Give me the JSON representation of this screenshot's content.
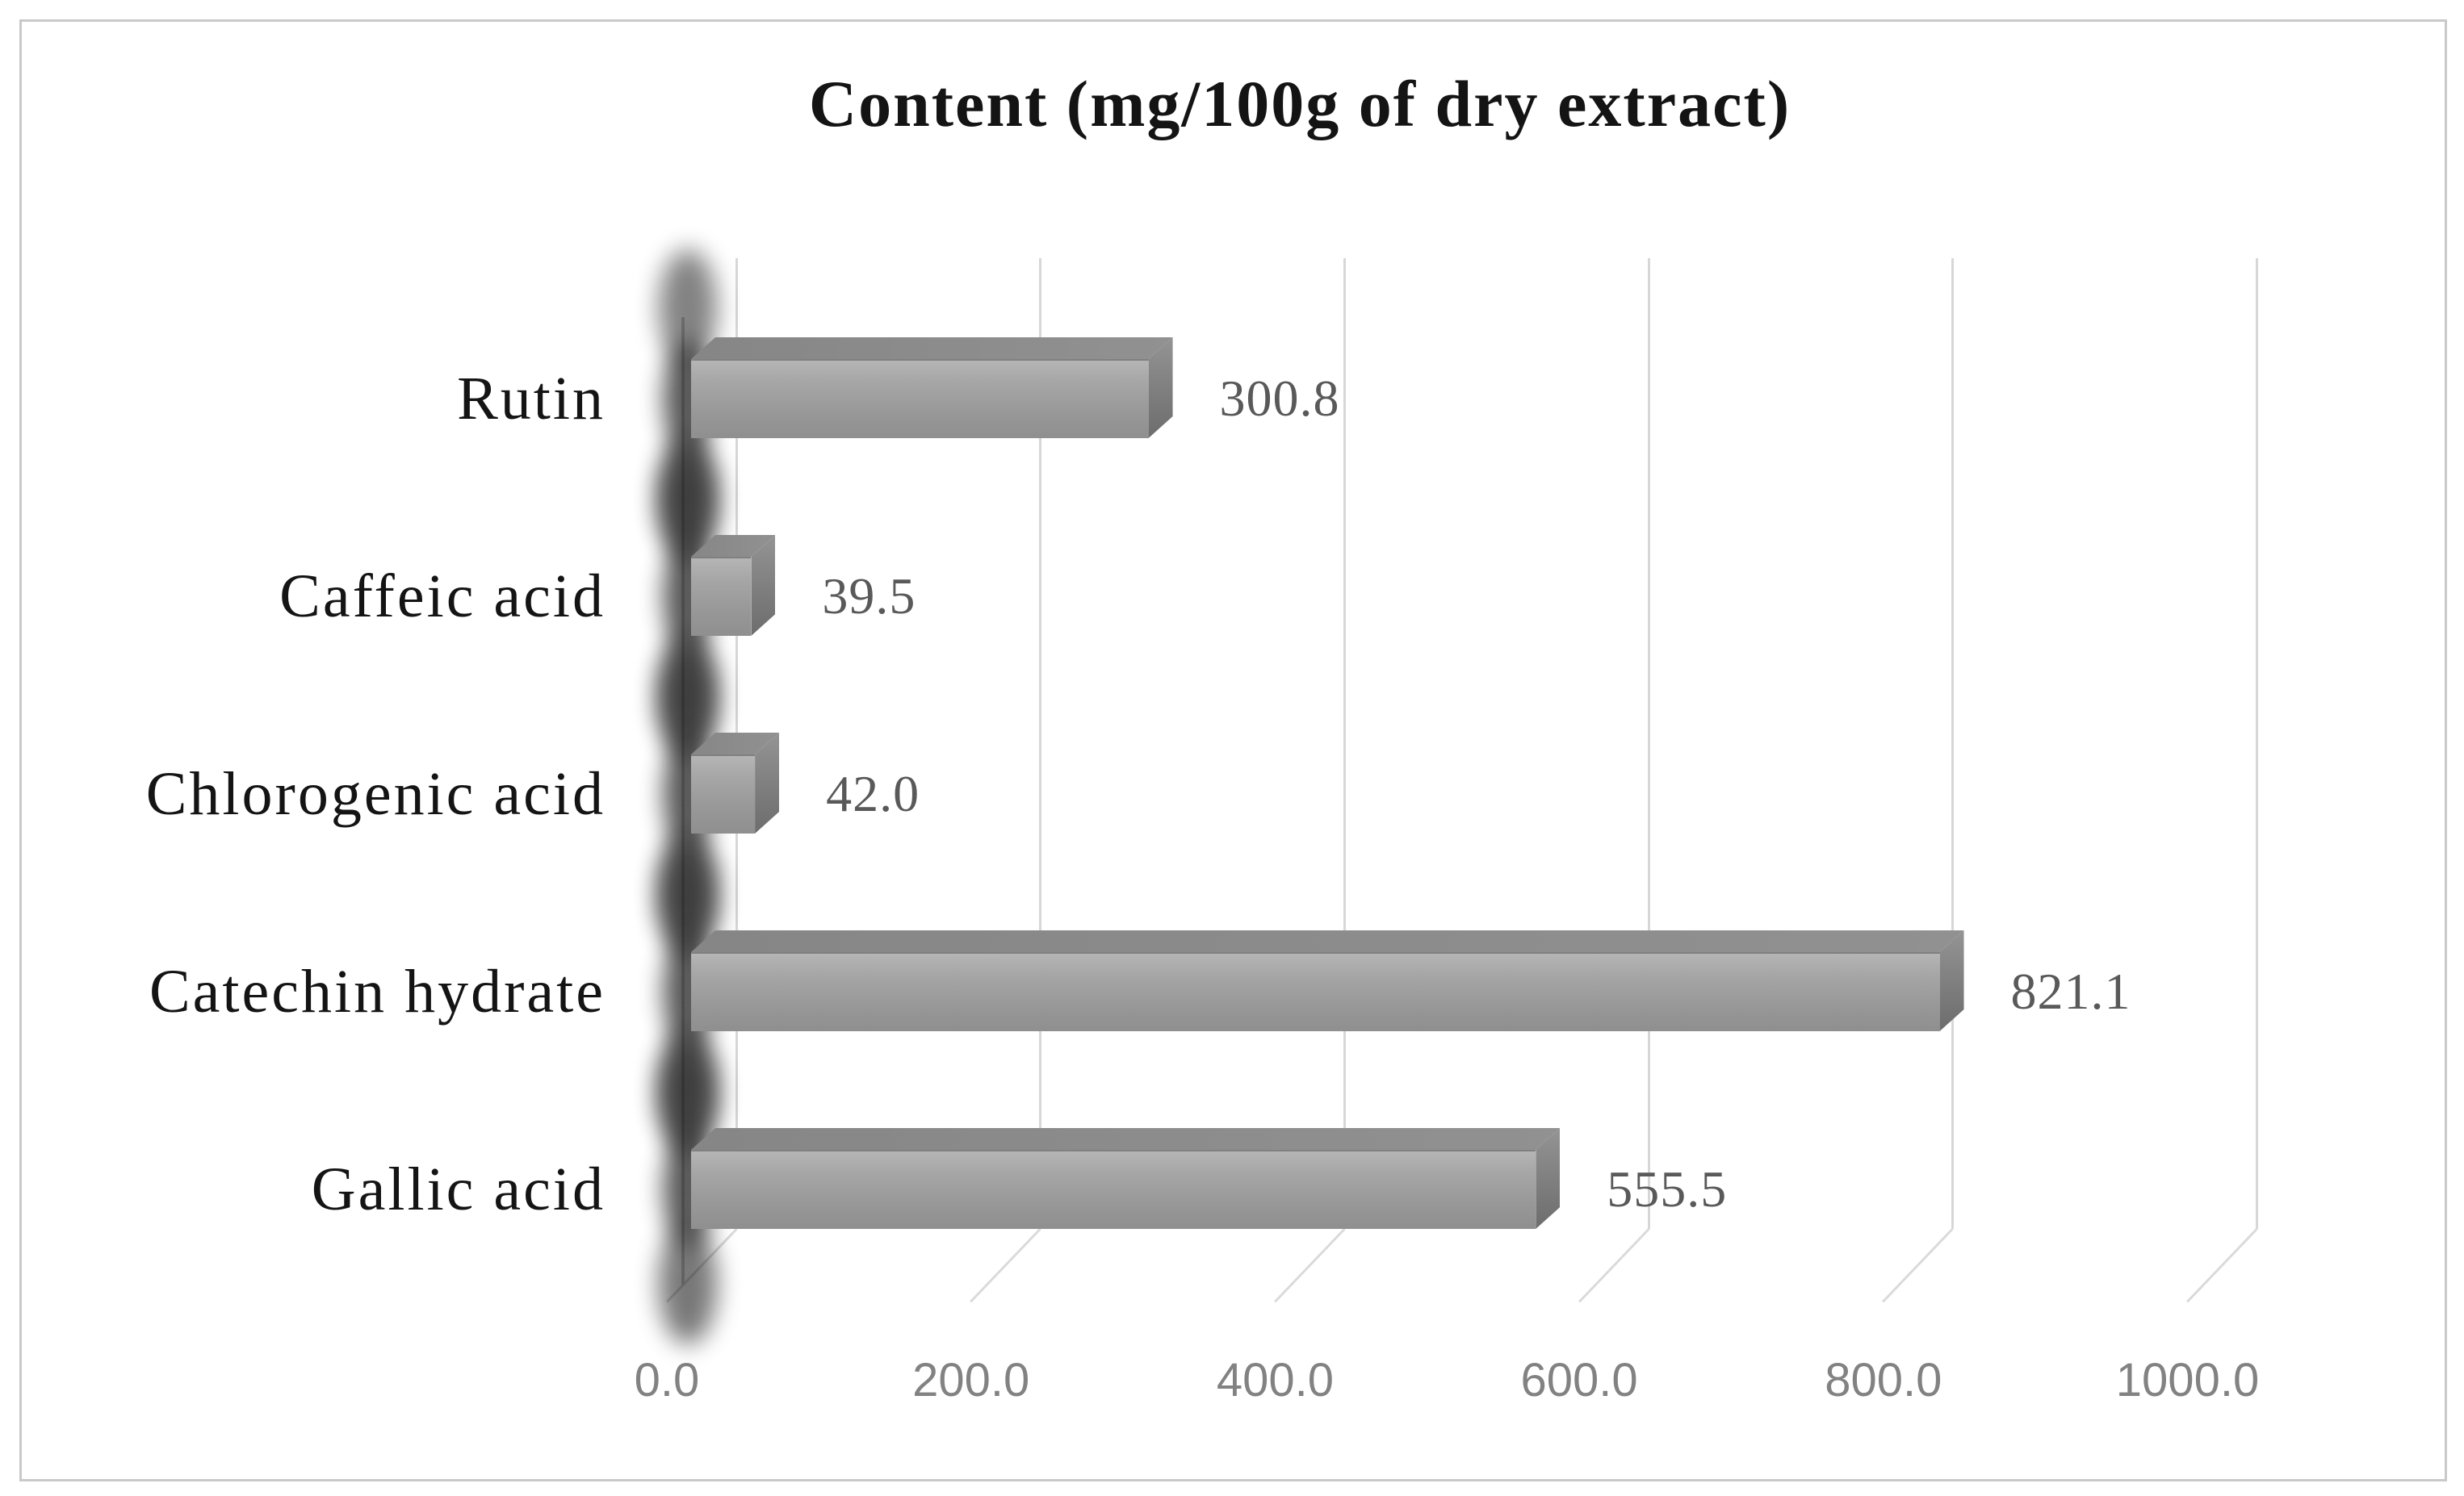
{
  "figure": {
    "background_color": "#ffffff",
    "border_color": "#c9c9c9"
  },
  "chart_data": {
    "type": "bar",
    "orientation": "horizontal",
    "style": "3d-extruded",
    "title": "Content (mg/100g of dry extract)",
    "categories": [
      "Rutin",
      "Caffeic acid",
      "Chlorogenic acid",
      "Catechin hydrate",
      "Gallic acid"
    ],
    "values": [
      300.8,
      39.5,
      42.0,
      821.1,
      555.5
    ],
    "value_labels": [
      "300.8",
      "39.5",
      "42.0",
      "821.1",
      "555.5"
    ],
    "x_ticks": [
      0,
      200,
      400,
      600,
      800,
      1000
    ],
    "x_tick_labels": [
      "0.0",
      "200.0",
      "400.0",
      "600.0",
      "800.0",
      "1000.0"
    ],
    "xlim": [
      0,
      1100
    ],
    "grid": true,
    "legend": null,
    "appearance": {
      "bar_color": "#9b9b9b",
      "bar_side_color": "#7c7c7c",
      "bar_top_color": "#8c8c8c",
      "gridline_color": "#d7d7d7",
      "axis_line_color": "#cdcdcd",
      "title_color": "#141414",
      "category_label_color": "#141414",
      "value_label_color": "#595959",
      "tick_label_color": "#828282"
    }
  }
}
